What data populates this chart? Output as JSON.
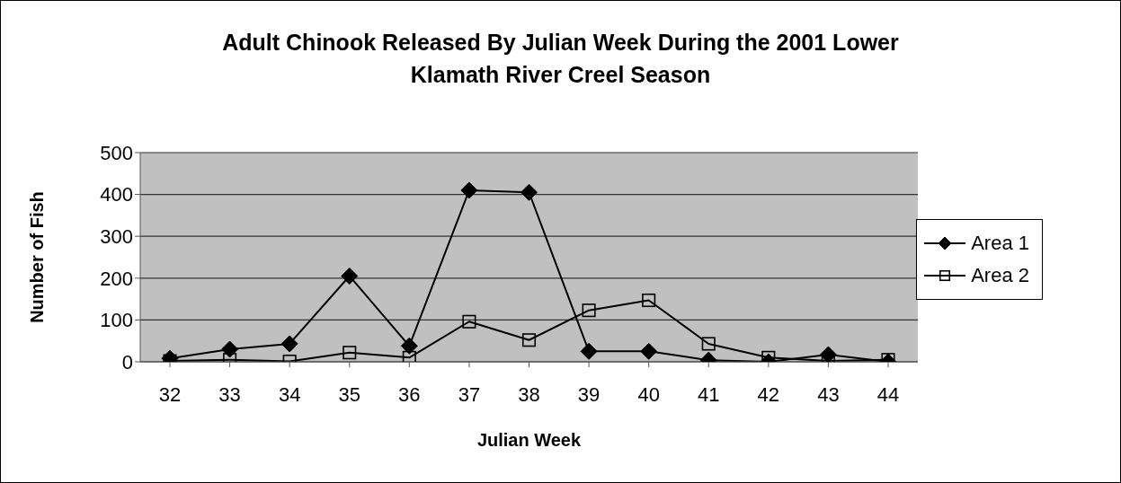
{
  "chart_data": {
    "type": "line",
    "title": "Adult Chinook Released By Julian Week During the 2001 Lower Klamath River Creel Season",
    "xlabel": "Julian Week",
    "ylabel": "Number of Fish",
    "categories": [
      "32",
      "33",
      "34",
      "35",
      "36",
      "37",
      "38",
      "39",
      "40",
      "41",
      "42",
      "43",
      "44"
    ],
    "series": [
      {
        "name": "Area 1",
        "color": "#000000",
        "marker": "diamond",
        "values": [
          8,
          30,
          43,
          205,
          38,
          410,
          405,
          25,
          25,
          4,
          0,
          17,
          0
        ]
      },
      {
        "name": "Area 2",
        "color": "#000000",
        "marker": "square",
        "values": [
          2,
          5,
          1,
          22,
          10,
          96,
          52,
          123,
          147,
          43,
          10,
          2,
          5
        ]
      }
    ],
    "ylim": [
      0,
      500
    ],
    "yticks": [
      0,
      100,
      200,
      300,
      400,
      500
    ],
    "grid": "y",
    "legend": "right",
    "line_style": "solid"
  }
}
